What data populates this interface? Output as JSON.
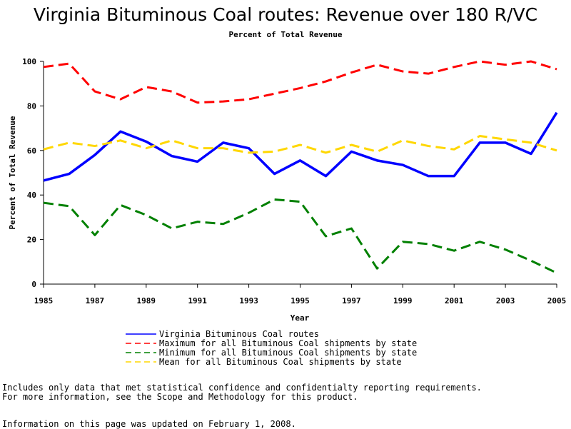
{
  "chart_data": {
    "type": "line",
    "title": "Virginia Bituminous Coal routes: Revenue over 180 R/VC",
    "subtitle": "Percent of Total Revenue",
    "xlabel": "Year",
    "ylabel": "Percent of Total Revenue",
    "xlim": [
      1985,
      2005
    ],
    "ylim": [
      0,
      100
    ],
    "x_ticks": [
      1985,
      1987,
      1989,
      1991,
      1993,
      1995,
      1997,
      1999,
      2001,
      2003,
      2005
    ],
    "y_ticks": [
      0,
      20,
      40,
      60,
      80,
      100
    ],
    "grid": false,
    "legend_position": "bottom",
    "x": [
      1985,
      1986,
      1987,
      1988,
      1989,
      1990,
      1991,
      1992,
      1993,
      1994,
      1995,
      1996,
      1997,
      1998,
      1999,
      2000,
      2001,
      2002,
      2003,
      2004,
      2005
    ],
    "series": [
      {
        "name": "Virginia Bituminous Coal routes",
        "color": "#0000ff",
        "style": "solid",
        "values": [
          46.5,
          49.5,
          58,
          68.5,
          64,
          57.5,
          55,
          63.5,
          61,
          49.5,
          55.5,
          48.5,
          59.5,
          55.5,
          53.5,
          48.5,
          48.5,
          63.5,
          63.5,
          58.5,
          77
        ]
      },
      {
        "name": "Maximum for all Bituminous Coal shipments by state",
        "color": "#ff0000",
        "style": "dashed",
        "values": [
          97.5,
          99,
          86.5,
          83,
          88.5,
          86.5,
          81.5,
          82,
          83,
          85.5,
          88,
          91,
          95,
          98.5,
          95.5,
          94.5,
          97.5,
          100,
          98.5,
          100,
          96.5
        ]
      },
      {
        "name": "Minimum for all Bituminous Coal shipments by state",
        "color": "#008000",
        "style": "dashed",
        "values": [
          36.5,
          35,
          22,
          35.5,
          31,
          25,
          28,
          27,
          32,
          38,
          37,
          21.5,
          25,
          7,
          19,
          18,
          15,
          19,
          15.5,
          10.5,
          5
        ]
      },
      {
        "name": "Mean for all Bituminous Coal shipments by state",
        "color": "#ffd700",
        "style": "dashed",
        "values": [
          60.5,
          63.5,
          62,
          64.5,
          61,
          64.5,
          61,
          61,
          59,
          59.5,
          62.5,
          59,
          62.5,
          59.5,
          64.5,
          62,
          60.5,
          66.5,
          65,
          63.5,
          60
        ]
      }
    ]
  },
  "footnotes": {
    "line1": "Includes only data that met statistical confidence and confidentialty reporting requirements.",
    "line2": "For more information, see the Scope and Methodology for this product.",
    "line3": "Information on this page was updated on February 1, 2008."
  }
}
